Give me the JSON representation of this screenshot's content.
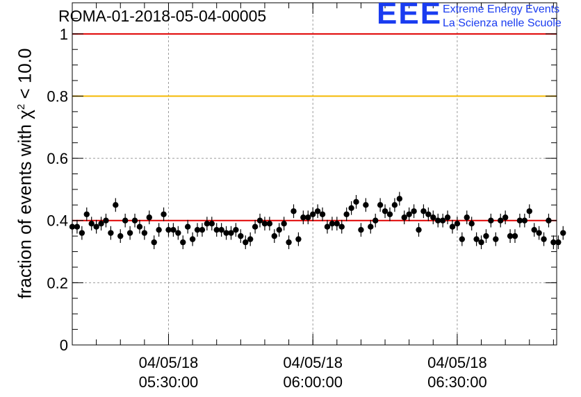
{
  "title": "ROMA-01-2018-05-04-00005",
  "logo": {
    "mark": "EEE",
    "line1": "Extreme Energy Events",
    "line2": "La Scienza nelle Scuole"
  },
  "colors": {
    "reference_line_upper": "#e00000",
    "reference_line_warning": "#f5b800",
    "reference_line_lower": "#e00000",
    "marker": "#000000",
    "grid": "#9a9a9a",
    "logo": "#1a3cf0"
  },
  "chart_data": {
    "type": "scatter",
    "title": "ROMA-01-2018-05-04-00005",
    "xlabel": "",
    "ylabel": "fraction of events with χ² < 10.0",
    "ylabel_parts": {
      "prefix": "fraction of events with χ",
      "sup": "2",
      "suffix": " < 10.0"
    },
    "ylim": [
      0,
      1.1
    ],
    "y_ticks": [
      "0",
      "0.2",
      "0.4",
      "0.6",
      "0.8",
      "1"
    ],
    "x_ticks": [
      {
        "date": "04/05/18",
        "time": "05:30:00"
      },
      {
        "date": "04/05/18",
        "time": "06:00:00"
      },
      {
        "date": "04/05/18",
        "time": "06:30:00"
      }
    ],
    "x_range": [
      "05:10:00",
      "06:50:40"
    ],
    "x_step_seconds": 60,
    "grid": true,
    "reference_lines": [
      1.0,
      0.8,
      0.4
    ],
    "error": 0.022,
    "y": [
      0.38,
      0.38,
      0.36,
      0.42,
      0.39,
      0.38,
      0.39,
      0.4,
      0.36,
      0.45,
      0.35,
      0.4,
      0.36,
      0.4,
      0.38,
      0.36,
      0.41,
      0.33,
      0.37,
      0.42,
      0.37,
      0.37,
      0.36,
      0.33,
      0.38,
      0.34,
      0.37,
      0.37,
      0.39,
      0.39,
      0.37,
      0.37,
      0.36,
      0.36,
      0.37,
      0.35,
      0.33,
      0.34,
      0.38,
      0.4,
      0.39,
      0.39,
      0.35,
      0.37,
      0.39,
      0.33,
      0.43,
      0.34,
      0.41,
      0.41,
      0.42,
      0.43,
      0.42,
      0.38,
      0.39,
      0.39,
      0.38,
      0.42,
      0.44,
      0.46,
      0.37,
      0.45,
      0.38,
      0.4,
      0.45,
      0.43,
      0.42,
      0.45,
      0.47,
      0.41,
      0.42,
      0.43,
      0.37,
      0.43,
      0.42,
      0.41,
      0.4,
      0.4,
      0.41,
      0.38,
      0.39,
      0.34,
      0.41,
      0.39,
      0.34,
      0.33,
      0.35,
      0.4,
      0.34,
      0.4,
      0.41,
      0.35,
      0.35,
      0.4,
      0.4,
      0.43,
      0.37,
      0.36,
      0.34,
      0.4,
      0.33,
      0.33,
      0.36
    ]
  }
}
